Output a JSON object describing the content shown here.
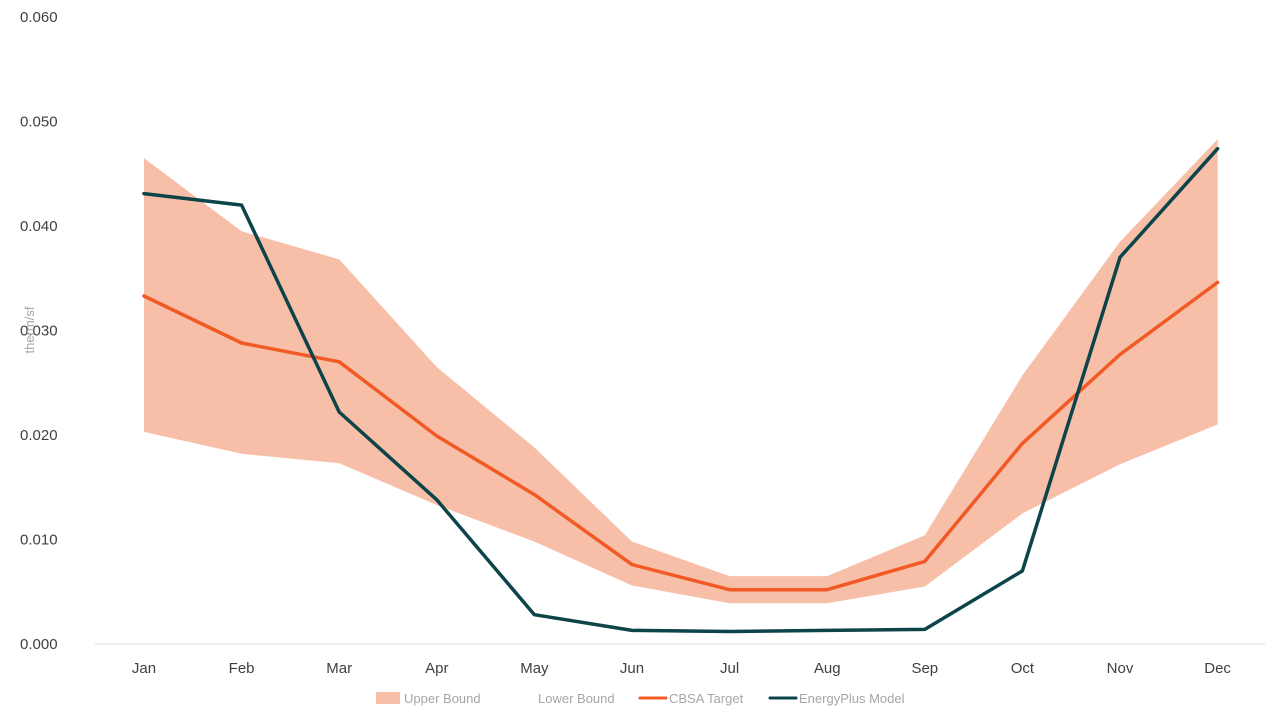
{
  "chart_data": {
    "type": "line",
    "title": "",
    "xlabel": "",
    "ylabel": "therm/sf",
    "ylim": [
      0,
      0.06
    ],
    "yticks": [
      "0.000",
      "0.010",
      "0.020",
      "0.030",
      "0.040",
      "0.050",
      "0.060"
    ],
    "ytick_values": [
      0,
      0.01,
      0.02,
      0.03,
      0.04,
      0.05,
      0.06
    ],
    "categories": [
      "Jan",
      "Feb",
      "Mar",
      "Apr",
      "May",
      "Jun",
      "Jul",
      "Aug",
      "Sep",
      "Oct",
      "Nov",
      "Dec"
    ],
    "grid": false,
    "legend_position": "bottom",
    "series": [
      {
        "name": "Upper Bound",
        "kind": "band-upper",
        "color": "#f8bfa8",
        "values": [
          0.0465,
          0.0395,
          0.0368,
          0.0265,
          0.0188,
          0.0098,
          0.0065,
          0.0065,
          0.0104,
          0.0257,
          0.0385,
          0.0483
        ]
      },
      {
        "name": "Lower Bound",
        "kind": "band-lower",
        "color": "#ffffff",
        "values": [
          0.0203,
          0.0182,
          0.0173,
          0.0133,
          0.0098,
          0.0056,
          0.0039,
          0.0039,
          0.0055,
          0.0125,
          0.0172,
          0.021
        ]
      },
      {
        "name": "CBSA Target",
        "kind": "line",
        "color": "#f15a24",
        "values": [
          0.0333,
          0.0288,
          0.027,
          0.0199,
          0.0143,
          0.0076,
          0.0052,
          0.0052,
          0.0079,
          0.0192,
          0.0277,
          0.0346
        ]
      },
      {
        "name": "EnergyPlus Model",
        "kind": "line",
        "color": "#0d4449",
        "values": [
          0.0431,
          0.042,
          0.0222,
          0.0138,
          0.0028,
          0.0013,
          0.0012,
          0.0013,
          0.0014,
          0.007,
          0.037,
          0.0474
        ]
      }
    ]
  }
}
